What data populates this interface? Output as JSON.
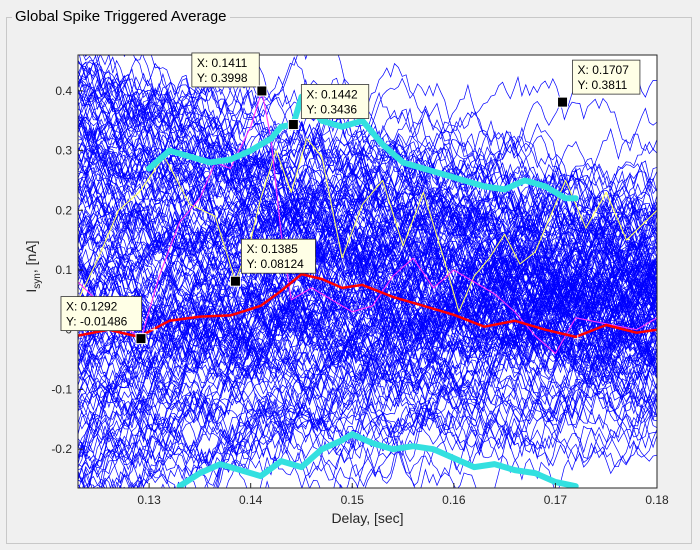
{
  "panel": {
    "title": "Global Spike Triggered Average"
  },
  "chart_data": {
    "type": "line",
    "title": "",
    "xlabel": "Delay, [sec]",
    "ylabel_main": "I",
    "ylabel_sub": "syn",
    "ylabel_rest": ", [nA]",
    "xlim": [
      0.123,
      0.18
    ],
    "ylim": [
      -0.265,
      0.46
    ],
    "xticks": [
      0.13,
      0.14,
      0.15,
      0.16,
      0.17,
      0.18
    ],
    "xtick_labels": [
      "0.13",
      "0.14",
      "0.15",
      "0.16",
      "0.17",
      "0.18"
    ],
    "yticks": [
      -0.2,
      -0.1,
      0,
      0.1,
      0.2,
      0.3,
      0.4
    ],
    "ytick_labels": [
      "-0.2",
      "-0.1",
      "0",
      "0.1",
      "0.2",
      "0.3",
      "0.4"
    ],
    "grid": false,
    "colors": {
      "background_traces": "#0000ff",
      "mean": "#ff0000",
      "envelope": "#33e0e0",
      "yellow_trace": "#ffff66",
      "magenta_trace": "#ff33ff"
    },
    "series": [
      {
        "role": "mean",
        "x": [
          0.123,
          0.126,
          0.129,
          0.132,
          0.135,
          0.138,
          0.141,
          0.143,
          0.145,
          0.147,
          0.149,
          0.151,
          0.154,
          0.157,
          0.16,
          0.163,
          0.166,
          0.169,
          0.172,
          0.175,
          0.178,
          0.18
        ],
        "y": [
          -0.01,
          0.0,
          -0.012,
          0.015,
          0.022,
          0.024,
          0.04,
          0.065,
          0.093,
          0.085,
          0.07,
          0.075,
          0.055,
          0.04,
          0.025,
          0.005,
          0.015,
          0.0,
          -0.012,
          0.008,
          -0.005,
          0.0
        ]
      },
      {
        "role": "upper-envelope",
        "x": [
          0.13,
          0.132,
          0.134,
          0.136,
          0.138,
          0.14,
          0.142,
          0.143,
          0.1442,
          0.145,
          0.147,
          0.149,
          0.151,
          0.153,
          0.155,
          0.157,
          0.159,
          0.161,
          0.163,
          0.165,
          0.167,
          0.169,
          0.171,
          0.172
        ],
        "y": [
          0.27,
          0.3,
          0.29,
          0.28,
          0.285,
          0.3,
          0.32,
          0.34,
          0.3436,
          0.39,
          0.35,
          0.34,
          0.35,
          0.31,
          0.28,
          0.27,
          0.26,
          0.25,
          0.24,
          0.235,
          0.25,
          0.24,
          0.22,
          0.22
        ]
      },
      {
        "role": "lower-envelope",
        "x": [
          0.133,
          0.135,
          0.137,
          0.139,
          0.141,
          0.143,
          0.145,
          0.147,
          0.149,
          0.15,
          0.152,
          0.154,
          0.156,
          0.158,
          0.16,
          0.162,
          0.164,
          0.166,
          0.168,
          0.17,
          0.172
        ],
        "y": [
          -0.262,
          -0.24,
          -0.225,
          -0.235,
          -0.245,
          -0.22,
          -0.23,
          -0.2,
          -0.185,
          -0.175,
          -0.19,
          -0.2,
          -0.195,
          -0.2,
          -0.215,
          -0.23,
          -0.225,
          -0.235,
          -0.24,
          -0.255,
          -0.262
        ]
      },
      {
        "role": "yellow-trace",
        "x": [
          0.123,
          0.125,
          0.127,
          0.129,
          0.1315,
          0.134,
          0.1365,
          0.1385,
          0.14,
          0.141,
          0.1425,
          0.144,
          0.1455,
          0.147,
          0.149,
          0.151,
          0.153,
          0.155,
          0.157,
          0.159,
          0.1605,
          0.162,
          0.1635,
          0.165,
          0.1665,
          0.168,
          0.1695,
          0.171,
          0.173,
          0.175,
          0.177,
          0.18
        ],
        "y": [
          0.05,
          0.12,
          0.2,
          0.23,
          0.29,
          0.21,
          0.19,
          0.08124,
          0.15,
          0.22,
          0.3,
          0.23,
          0.32,
          0.29,
          0.12,
          0.21,
          0.25,
          0.14,
          0.23,
          0.12,
          0.03,
          0.09,
          0.12,
          0.16,
          0.11,
          0.13,
          0.19,
          0.25,
          0.17,
          0.23,
          0.15,
          0.2
        ]
      },
      {
        "role": "magenta-trace",
        "x": [
          0.123,
          0.126,
          0.128,
          0.1292,
          0.131,
          0.133,
          0.135,
          0.1365,
          0.138,
          0.14,
          0.1411,
          0.142,
          0.143,
          0.144,
          0.146,
          0.148,
          0.15,
          0.152,
          0.154,
          0.156,
          0.158,
          0.16,
          0.162,
          0.164,
          0.166,
          0.168,
          0.17,
          0.172,
          0.175,
          0.178,
          0.18
        ],
        "y": [
          0.08,
          0.03,
          0.0,
          -0.01486,
          0.09,
          0.18,
          0.22,
          0.28,
          0.27,
          0.34,
          0.3998,
          0.32,
          0.16,
          0.05,
          0.07,
          0.05,
          0.03,
          0.04,
          0.09,
          0.12,
          0.07,
          0.1,
          0.08,
          0.06,
          0.03,
          -0.01,
          -0.04,
          0.02,
          0.01,
          0.0,
          0.02
        ]
      }
    ],
    "crosshair_markers": [
      {
        "x": 0.1305,
        "y": 0.0
      },
      {
        "x": 0.1722,
        "y": -0.015
      }
    ],
    "datatips": [
      {
        "x": 0.1411,
        "y": 0.3998,
        "x_text": "X: 0.1411",
        "y_text": "Y: 0.3998"
      },
      {
        "x": 0.1442,
        "y": 0.3436,
        "x_text": "X: 0.1442",
        "y_text": "Y: 0.3436"
      },
      {
        "x": 0.1707,
        "y": 0.3811,
        "x_text": "X: 0.1707",
        "y_text": "Y: 0.3811"
      },
      {
        "x": 0.1385,
        "y": 0.08124,
        "x_text": "X: 0.1385",
        "y_text": "Y: 0.08124"
      },
      {
        "x": 0.1292,
        "y": -0.01486,
        "x_text": "X: 0.1292",
        "y_text": "Y: -0.01486"
      }
    ]
  }
}
